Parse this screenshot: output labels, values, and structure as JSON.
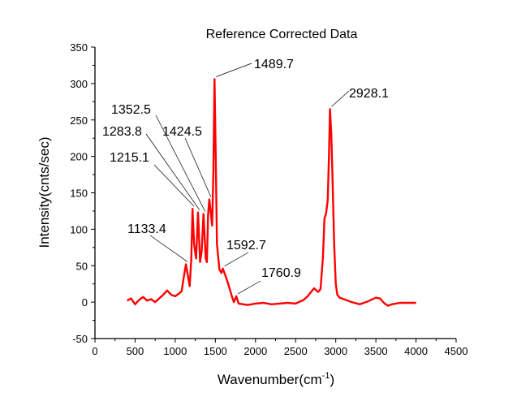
{
  "chart_data": {
    "type": "line",
    "title": "Reference Corrected Data",
    "xlabel": "Wavenumber(cm",
    "xlabel_sup": "-1",
    "xlabel_end": ")",
    "ylabel": "Intensity(cnts/sec)",
    "xlim": [
      0,
      4500
    ],
    "ylim": [
      -50,
      350
    ],
    "xticks": [
      0,
      500,
      1000,
      1500,
      2000,
      2500,
      3000,
      3500,
      4000,
      4500
    ],
    "yticks": [
      -50,
      0,
      50,
      100,
      150,
      200,
      250,
      300,
      350
    ],
    "grid": false,
    "line_color": "#ff0000",
    "series": [
      {
        "points": [
          [
            400,
            2
          ],
          [
            450,
            5
          ],
          [
            500,
            -3
          ],
          [
            550,
            3
          ],
          [
            600,
            7
          ],
          [
            650,
            2
          ],
          [
            700,
            4
          ],
          [
            750,
            0
          ],
          [
            800,
            5
          ],
          [
            850,
            10
          ],
          [
            900,
            16
          ],
          [
            950,
            10
          ],
          [
            1000,
            8
          ],
          [
            1050,
            12
          ],
          [
            1080,
            15
          ],
          [
            1100,
            30
          ],
          [
            1133.4,
            52
          ],
          [
            1160,
            35
          ],
          [
            1180,
            22
          ],
          [
            1200,
            60
          ],
          [
            1215.1,
            128
          ],
          [
            1235,
            80
          ],
          [
            1260,
            60
          ],
          [
            1283.8,
            123
          ],
          [
            1310,
            55
          ],
          [
            1330,
            70
          ],
          [
            1352.5,
            121
          ],
          [
            1380,
            60
          ],
          [
            1395,
            55
          ],
          [
            1410,
            120
          ],
          [
            1424.5,
            141
          ],
          [
            1445,
            120
          ],
          [
            1460,
            105
          ],
          [
            1475,
            180
          ],
          [
            1489.7,
            306
          ],
          [
            1505,
            200
          ],
          [
            1520,
            80
          ],
          [
            1550,
            45
          ],
          [
            1575,
            40
          ],
          [
            1592.7,
            46
          ],
          [
            1620,
            38
          ],
          [
            1660,
            25
          ],
          [
            1700,
            10
          ],
          [
            1730,
            0
          ],
          [
            1760.9,
            8
          ],
          [
            1790,
            -2
          ],
          [
            1850,
            -3
          ],
          [
            1900,
            -4
          ],
          [
            2000,
            -2
          ],
          [
            2100,
            -1
          ],
          [
            2200,
            -3
          ],
          [
            2300,
            -2
          ],
          [
            2400,
            -1
          ],
          [
            2500,
            -2
          ],
          [
            2600,
            3
          ],
          [
            2650,
            8
          ],
          [
            2700,
            15
          ],
          [
            2730,
            19
          ],
          [
            2780,
            14
          ],
          [
            2810,
            18
          ],
          [
            2840,
            60
          ],
          [
            2860,
            115
          ],
          [
            2880,
            122
          ],
          [
            2900,
            140
          ],
          [
            2915,
            200
          ],
          [
            2928.1,
            265
          ],
          [
            2945,
            230
          ],
          [
            2960,
            170
          ],
          [
            2980,
            80
          ],
          [
            3000,
            25
          ],
          [
            3020,
            10
          ],
          [
            3050,
            6
          ],
          [
            3100,
            4
          ],
          [
            3200,
            0
          ],
          [
            3300,
            -3
          ],
          [
            3400,
            1
          ],
          [
            3500,
            6
          ],
          [
            3550,
            5
          ],
          [
            3600,
            -1
          ],
          [
            3650,
            -5
          ],
          [
            3700,
            -3
          ],
          [
            3800,
            -1
          ],
          [
            3900,
            -1
          ],
          [
            4000,
            -1
          ]
        ]
      }
    ],
    "annotations": [
      {
        "text": "1133.4",
        "x": 1133.4,
        "y": 52
      },
      {
        "text": "1215.1",
        "x": 1215.1,
        "y": 128
      },
      {
        "text": "1283.8",
        "x": 1283.8,
        "y": 123
      },
      {
        "text": "1352.5",
        "x": 1352.5,
        "y": 121
      },
      {
        "text": "1424.5",
        "x": 1424.5,
        "y": 141
      },
      {
        "text": "1489.7",
        "x": 1489.7,
        "y": 306
      },
      {
        "text": "1592.7",
        "x": 1592.7,
        "y": 46
      },
      {
        "text": "1760.9",
        "x": 1760.9,
        "y": 8
      },
      {
        "text": "2928.1",
        "x": 2928.1,
        "y": 265
      }
    ]
  }
}
